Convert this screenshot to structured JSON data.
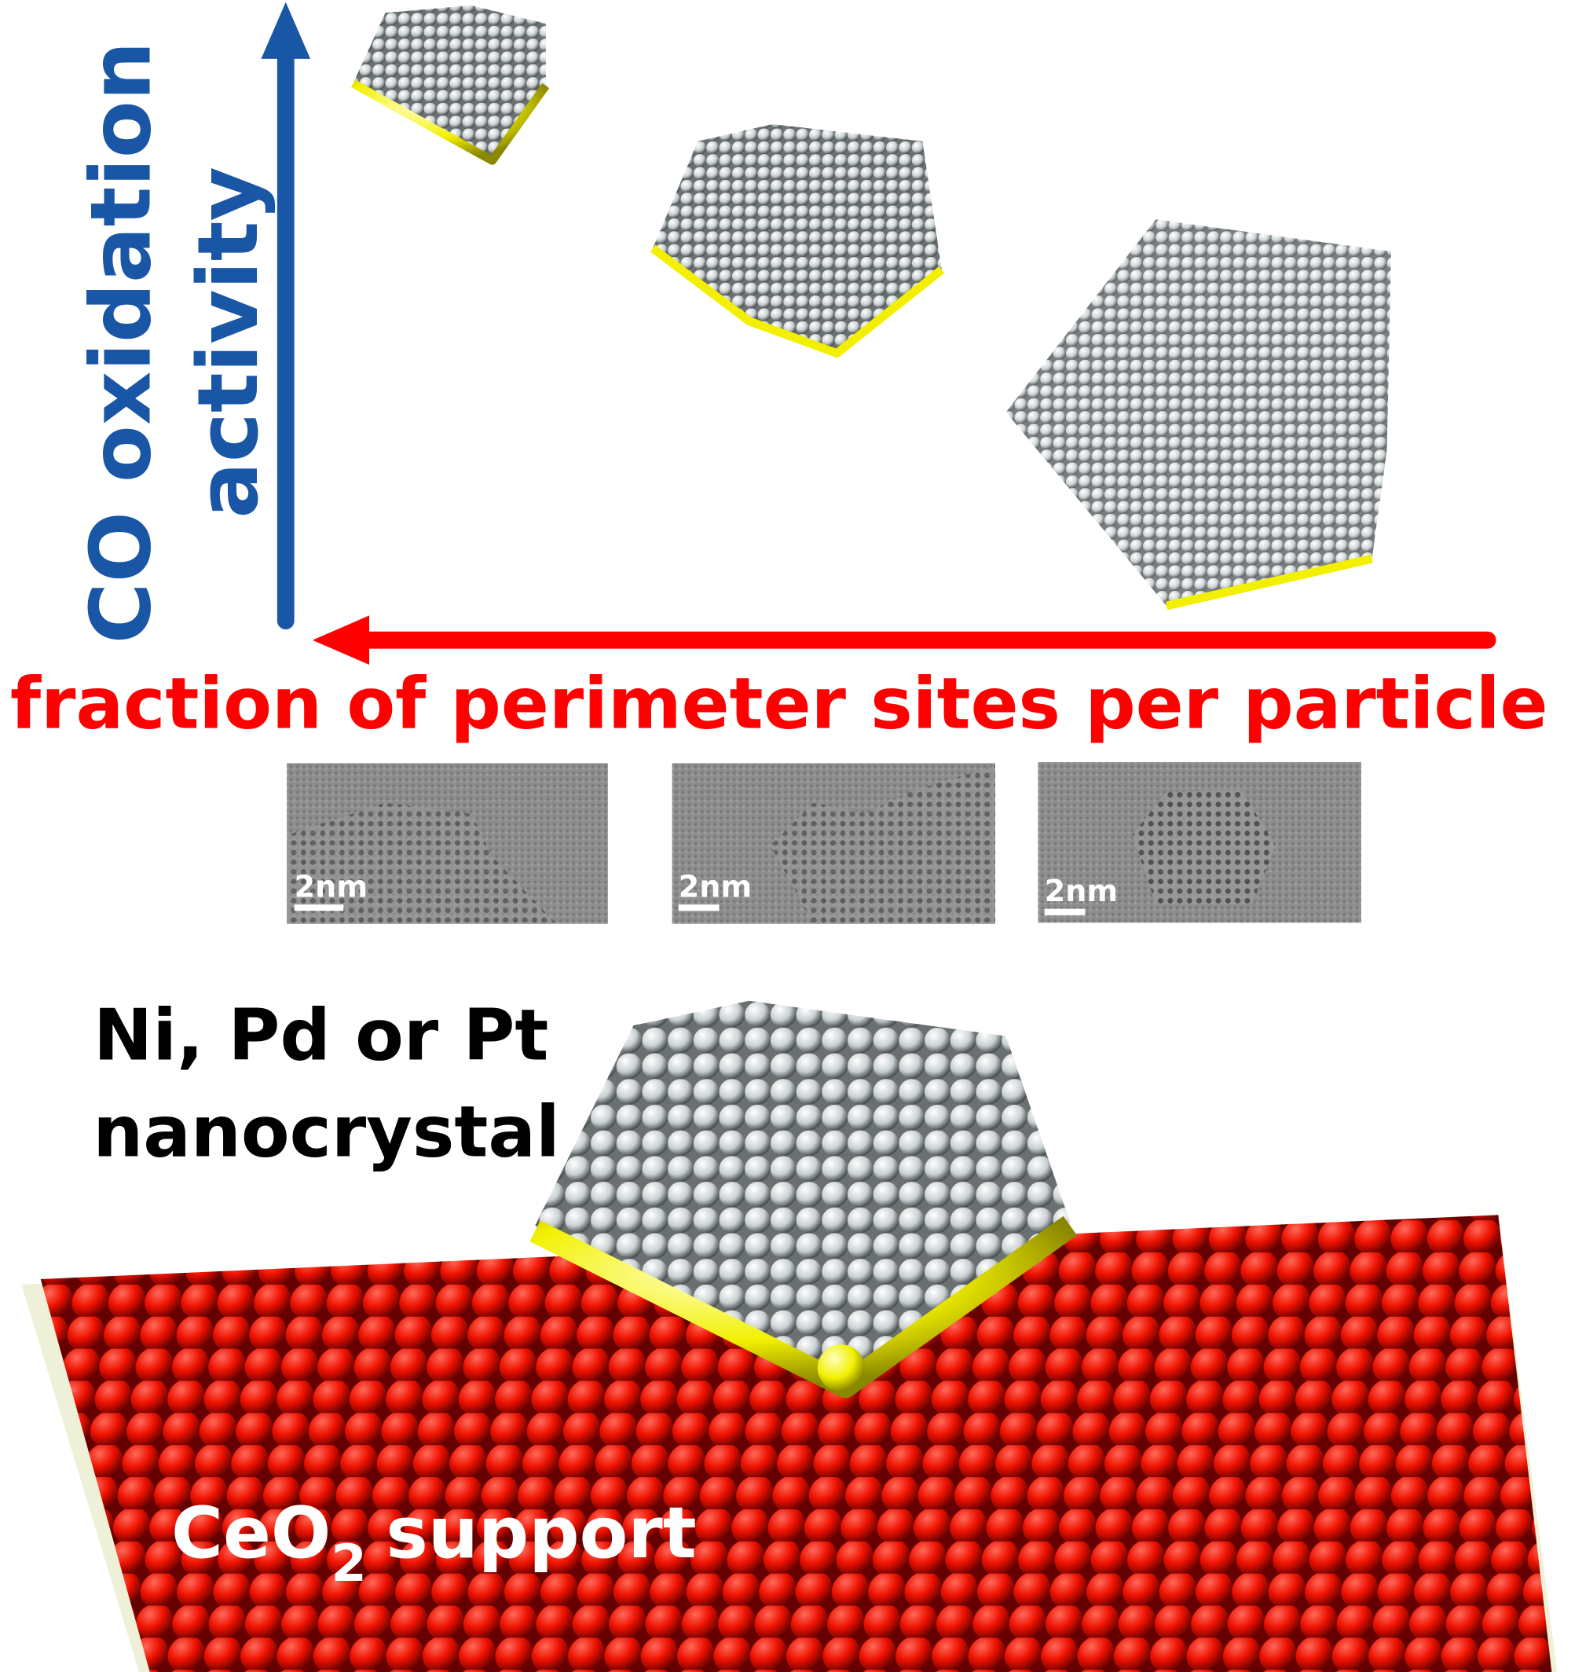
{
  "y_axis": {
    "line1": "CO oxidation",
    "line2": "activity"
  },
  "x_axis": {
    "label": "fraction of perimeter sites per particle"
  },
  "tem_images": [
    {
      "scale_bar": "2nm"
    },
    {
      "scale_bar": "2nm"
    },
    {
      "scale_bar": "2nm"
    }
  ],
  "nanocrystal_label": {
    "line1": "Ni, Pd or Pt",
    "line2": "nanocrystal"
  },
  "support_label": {
    "main": "CeO",
    "subscript": "2",
    "rest": "support"
  }
}
